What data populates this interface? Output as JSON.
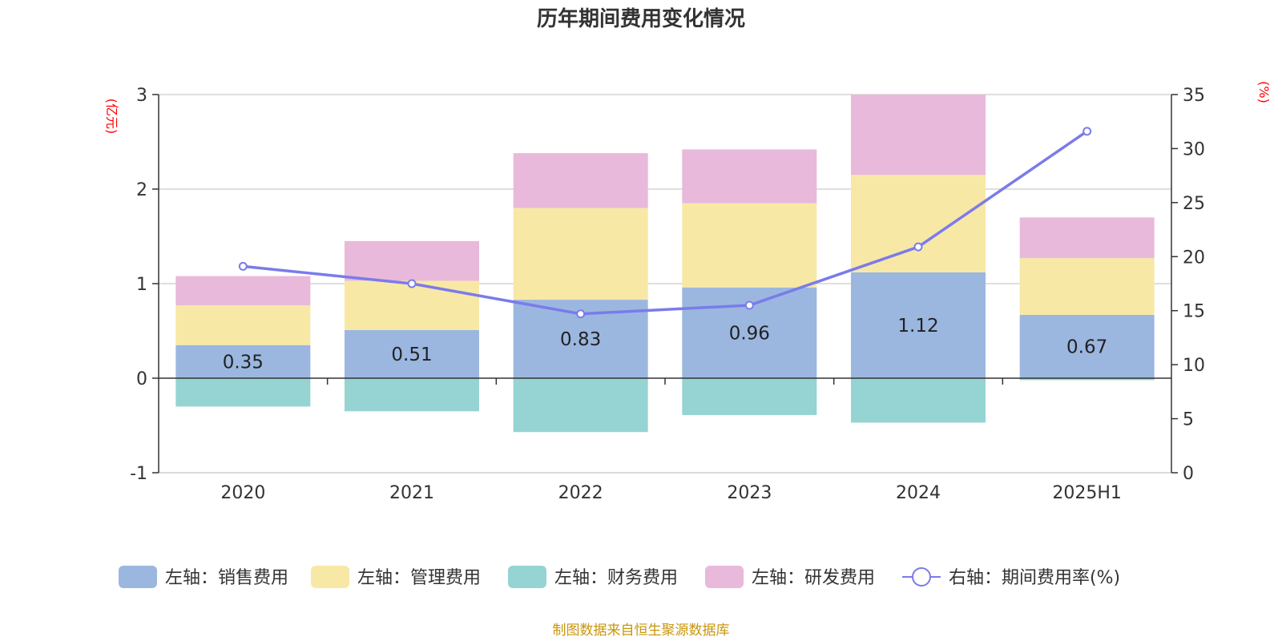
{
  "chart_data": {
    "type": "bar",
    "title": "历年期间费用变化情况",
    "categories": [
      "2020",
      "2021",
      "2022",
      "2023",
      "2024",
      "2025H1"
    ],
    "left_axis": {
      "unit": "(亿元)",
      "ylim": [
        -1,
        3
      ],
      "ticks": [
        "-1",
        "0",
        "1",
        "2",
        "3"
      ]
    },
    "right_axis": {
      "unit": "(%)",
      "ylim": [
        0,
        35
      ],
      "ticks": [
        "0",
        "5",
        "10",
        "15",
        "20",
        "25",
        "30",
        "35"
      ]
    },
    "stacked": true,
    "series": [
      {
        "name": "左轴：销售费用",
        "axis": "left",
        "type": "bar",
        "color": "#9bb7e0",
        "values": [
          0.35,
          0.51,
          0.83,
          0.96,
          1.12,
          0.67
        ],
        "labels": [
          "0.35",
          "0.51",
          "0.83",
          "0.96",
          "1.12",
          "0.67"
        ]
      },
      {
        "name": "左轴：管理费用",
        "axis": "left",
        "type": "bar",
        "color": "#f8e8a6",
        "values": [
          0.42,
          0.52,
          0.97,
          0.89,
          1.03,
          0.6
        ]
      },
      {
        "name": "左轴：财务费用",
        "axis": "left",
        "type": "bar",
        "color": "#96d3d3",
        "values": [
          -0.3,
          -0.35,
          -0.57,
          -0.39,
          -0.47,
          -0.02
        ]
      },
      {
        "name": "左轴：研发费用",
        "axis": "left",
        "type": "bar",
        "color": "#e8b9da",
        "values": [
          0.31,
          0.42,
          0.58,
          0.57,
          0.85,
          0.43
        ]
      },
      {
        "name": "右轴：期间费用率(%)",
        "axis": "right",
        "type": "line",
        "color": "#7b7bea",
        "values": [
          19.1,
          17.5,
          14.7,
          15.5,
          20.9,
          31.6
        ]
      }
    ],
    "grid": true,
    "legend_position": "bottom"
  },
  "source": "制图数据来自恒生聚源数据库"
}
